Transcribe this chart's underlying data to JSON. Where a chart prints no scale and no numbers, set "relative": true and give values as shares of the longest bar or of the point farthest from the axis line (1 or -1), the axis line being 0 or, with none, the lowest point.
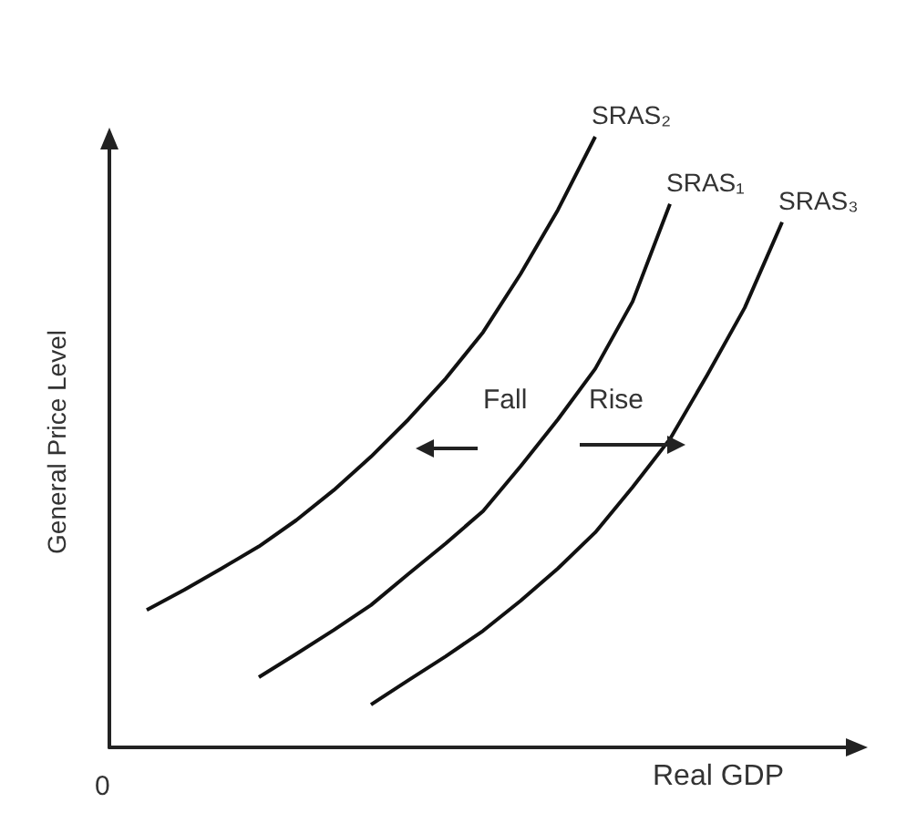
{
  "chart_data": {
    "type": "line",
    "relative": true,
    "xlabel": "Real GDP",
    "ylabel": "General Price Level",
    "tick_labels": false,
    "grid": false,
    "legend": false,
    "marker": "none",
    "line_style": "solid",
    "annotations": [
      "Fall",
      "Rise",
      "0"
    ],
    "categories": [
      null,
      null,
      null,
      null,
      null,
      null,
      null,
      null,
      null,
      null,
      null,
      null,
      null,
      null,
      null,
      null,
      null,
      null,
      null,
      null,
      null
    ],
    "series": [
      {
        "name": "SRAS₂",
        "color": "#111111",
        "values": [
          null,
          0.225,
          0.258,
          0.293,
          0.329,
          0.372,
          0.421,
          0.476,
          0.537,
          0.604,
          0.68,
          0.775,
          0.88,
          1.0,
          null,
          null,
          null,
          null,
          null,
          null,
          null
        ]
      },
      {
        "name": "SRAS₁",
        "color": "#111111",
        "values": [
          null,
          null,
          null,
          null,
          0.115,
          0.153,
          0.192,
          0.233,
          0.284,
          0.334,
          0.387,
          0.46,
          0.537,
          0.62,
          0.73,
          0.89,
          null,
          null,
          null,
          null,
          null
        ]
      },
      {
        "name": "SRAS₃",
        "color": "#111111",
        "values": [
          null,
          null,
          null,
          null,
          null,
          null,
          null,
          0.07,
          0.11,
          0.149,
          0.191,
          0.24,
          0.293,
          0.352,
          0.426,
          0.505,
          0.61,
          0.72,
          0.86,
          null,
          null
        ]
      }
    ]
  }
}
